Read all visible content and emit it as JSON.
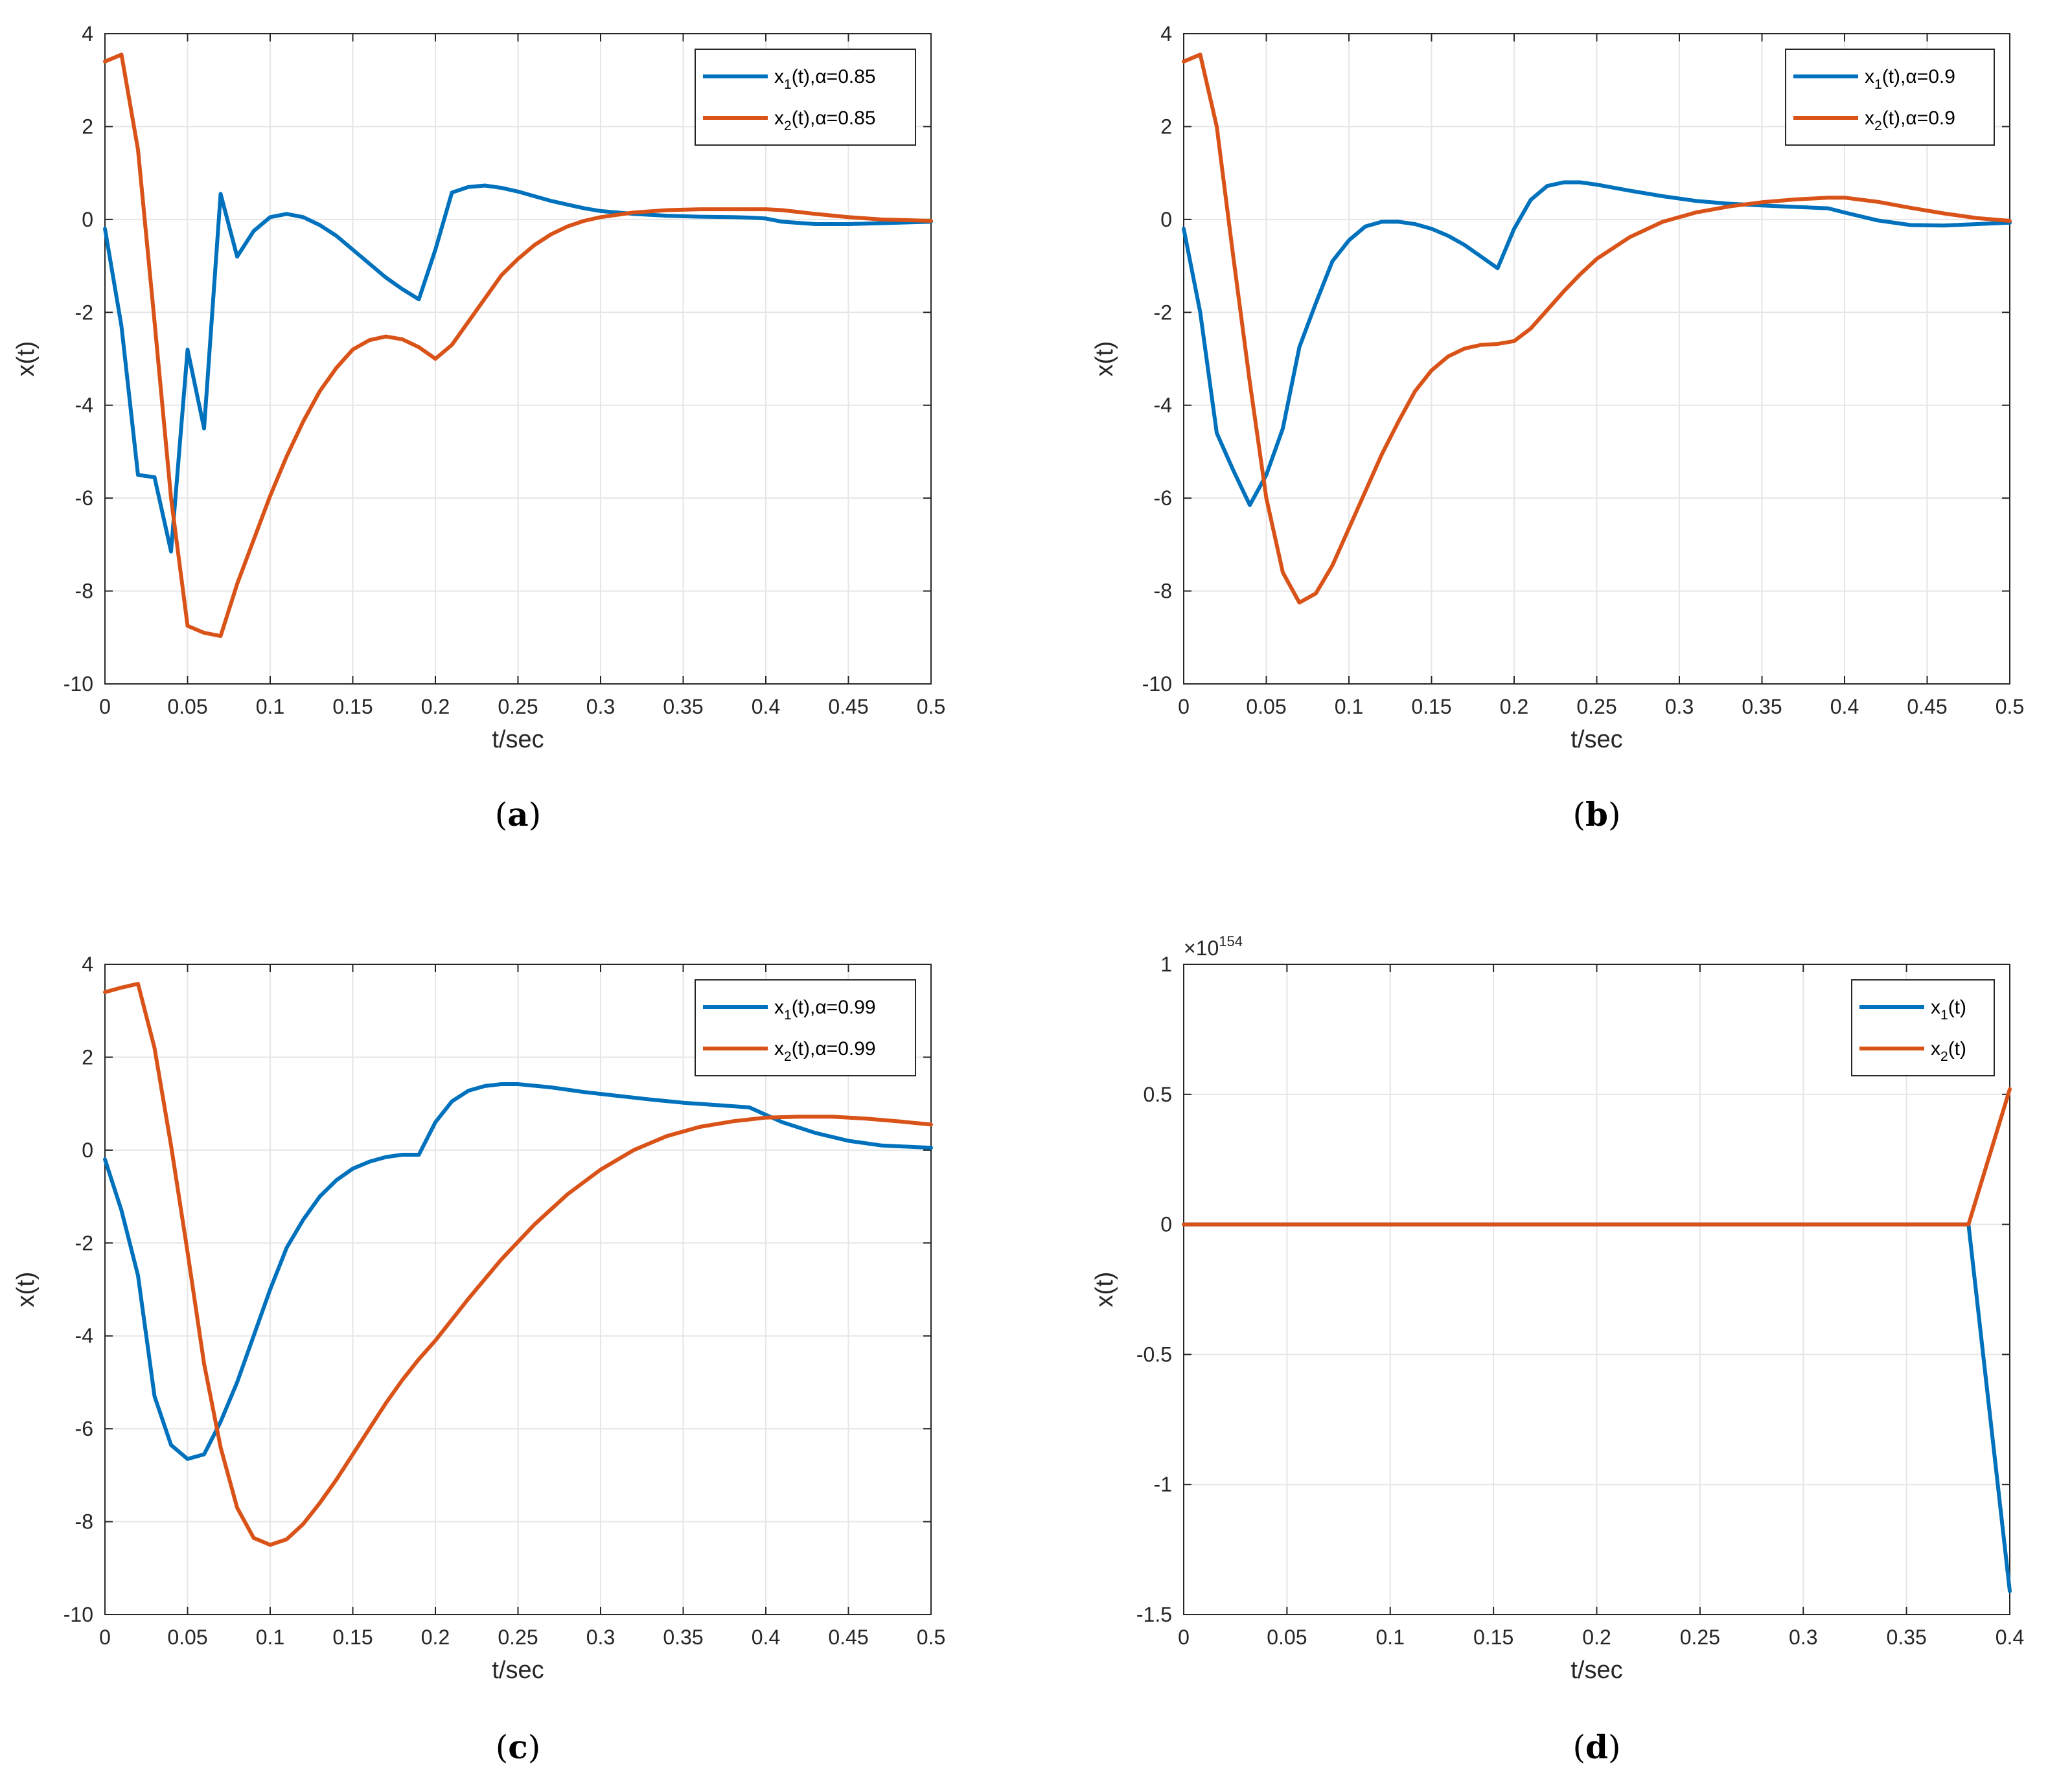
{
  "colors": {
    "series1": "#0072BD",
    "series2": "#D95319",
    "grid": "#e6e6e6",
    "axis": "#262626",
    "background": "#ffffff"
  },
  "chart_data": [
    {
      "type": "line",
      "panel": "a",
      "caption": "a",
      "xlabel": "t/sec",
      "ylabel": "x(t)",
      "xlim": [
        0,
        0.5
      ],
      "ylim": [
        -10,
        4
      ],
      "xticks": [
        "0",
        "0.05",
        "0.1",
        "0.15",
        "0.2",
        "0.25",
        "0.3",
        "0.35",
        "0.4",
        "0.45",
        "0.5"
      ],
      "yticks": [
        "-10",
        "-8",
        "-6",
        "-4",
        "-2",
        "0",
        "2",
        "4"
      ],
      "grid": true,
      "legend_position": "top-right",
      "series": [
        {
          "name": "x_1(t),α=0.85",
          "label_main": "x",
          "label_sub": "1",
          "label_rest": "(t),α=0.85",
          "color_key": "series1",
          "x": [
            0,
            0.01,
            0.02,
            0.03,
            0.04,
            0.05,
            0.06,
            0.07,
            0.08,
            0.09,
            0.1,
            0.11,
            0.12,
            0.13,
            0.14,
            0.15,
            0.16,
            0.17,
            0.18,
            0.19,
            0.2,
            0.21,
            0.22,
            0.23,
            0.24,
            0.25,
            0.26,
            0.27,
            0.28,
            0.29,
            0.3,
            0.32,
            0.34,
            0.36,
            0.38,
            0.39,
            0.4,
            0.41,
            0.43,
            0.45,
            0.47,
            0.5
          ],
          "y": [
            -0.2,
            -2.3,
            -5.5,
            -5.55,
            -7.15,
            -2.8,
            -4.5,
            0.55,
            -0.8,
            -0.25,
            0.05,
            0.12,
            0.05,
            -0.12,
            -0.35,
            -0.65,
            -0.95,
            -1.25,
            -1.5,
            -1.72,
            -0.65,
            0.58,
            0.7,
            0.73,
            0.68,
            0.6,
            0.5,
            0.4,
            0.32,
            0.24,
            0.18,
            0.12,
            0.08,
            0.06,
            0.05,
            0.04,
            0.02,
            -0.05,
            -0.1,
            -0.1,
            -0.08,
            -0.05
          ]
        },
        {
          "name": "x_2(t),α=0.85",
          "label_main": "x",
          "label_sub": "2",
          "label_rest": "(t),α=0.85",
          "color_key": "series2",
          "x": [
            0,
            0.01,
            0.02,
            0.03,
            0.04,
            0.05,
            0.06,
            0.07,
            0.08,
            0.09,
            0.1,
            0.11,
            0.12,
            0.13,
            0.14,
            0.15,
            0.16,
            0.17,
            0.18,
            0.19,
            0.2,
            0.21,
            0.22,
            0.23,
            0.24,
            0.25,
            0.26,
            0.27,
            0.28,
            0.29,
            0.3,
            0.32,
            0.34,
            0.36,
            0.38,
            0.4,
            0.41,
            0.43,
            0.45,
            0.47,
            0.5
          ],
          "y": [
            3.4,
            3.55,
            1.5,
            -2.2,
            -6.0,
            -8.75,
            -8.9,
            -8.97,
            -7.85,
            -6.9,
            -5.95,
            -5.1,
            -4.35,
            -3.7,
            -3.2,
            -2.8,
            -2.6,
            -2.52,
            -2.58,
            -2.75,
            -3.0,
            -2.7,
            -2.2,
            -1.7,
            -1.2,
            -0.85,
            -0.55,
            -0.32,
            -0.15,
            -0.03,
            0.05,
            0.15,
            0.2,
            0.22,
            0.22,
            0.22,
            0.2,
            0.12,
            0.05,
            0.0,
            -0.03
          ]
        }
      ]
    },
    {
      "type": "line",
      "panel": "b",
      "caption": "b",
      "xlabel": "t/sec",
      "ylabel": "x(t)",
      "xlim": [
        0,
        0.5
      ],
      "ylim": [
        -10,
        4
      ],
      "xticks": [
        "0",
        "0.05",
        "0.1",
        "0.15",
        "0.2",
        "0.25",
        "0.3",
        "0.35",
        "0.4",
        "0.45",
        "0.5"
      ],
      "yticks": [
        "-10",
        "-8",
        "-6",
        "-4",
        "-2",
        "0",
        "2",
        "4"
      ],
      "grid": true,
      "legend_position": "top-right",
      "series": [
        {
          "name": "x_1(t),α=0.9",
          "label_main": "x",
          "label_sub": "1",
          "label_rest": "(t),α=0.9",
          "color_key": "series1",
          "x": [
            0,
            0.01,
            0.02,
            0.03,
            0.04,
            0.05,
            0.06,
            0.07,
            0.08,
            0.09,
            0.1,
            0.11,
            0.12,
            0.13,
            0.14,
            0.15,
            0.16,
            0.17,
            0.18,
            0.19,
            0.2,
            0.21,
            0.22,
            0.23,
            0.24,
            0.25,
            0.27,
            0.29,
            0.31,
            0.33,
            0.35,
            0.37,
            0.39,
            0.4,
            0.42,
            0.44,
            0.46,
            0.48,
            0.5
          ],
          "y": [
            -0.2,
            -2.0,
            -4.6,
            -5.4,
            -6.15,
            -5.5,
            -4.5,
            -2.75,
            -1.8,
            -0.9,
            -0.45,
            -0.15,
            -0.05,
            -0.05,
            -0.1,
            -0.2,
            -0.35,
            -0.55,
            -0.8,
            -1.05,
            -0.2,
            0.42,
            0.72,
            0.8,
            0.8,
            0.75,
            0.62,
            0.5,
            0.4,
            0.34,
            0.3,
            0.27,
            0.24,
            0.15,
            -0.02,
            -0.12,
            -0.13,
            -0.1,
            -0.07
          ]
        },
        {
          "name": "x_2(t),α=0.9",
          "label_main": "x",
          "label_sub": "2",
          "label_rest": "(t),α=0.9",
          "color_key": "series2",
          "x": [
            0,
            0.01,
            0.02,
            0.03,
            0.04,
            0.05,
            0.06,
            0.07,
            0.08,
            0.09,
            0.1,
            0.11,
            0.12,
            0.13,
            0.14,
            0.15,
            0.16,
            0.17,
            0.18,
            0.19,
            0.2,
            0.21,
            0.22,
            0.23,
            0.24,
            0.25,
            0.27,
            0.29,
            0.31,
            0.33,
            0.35,
            0.37,
            0.39,
            0.4,
            0.42,
            0.44,
            0.46,
            0.48,
            0.5
          ],
          "y": [
            3.4,
            3.55,
            2.0,
            -0.8,
            -3.5,
            -6.0,
            -7.6,
            -8.25,
            -8.05,
            -7.45,
            -6.65,
            -5.85,
            -5.05,
            -4.35,
            -3.7,
            -3.25,
            -2.95,
            -2.78,
            -2.7,
            -2.68,
            -2.62,
            -2.35,
            -1.95,
            -1.55,
            -1.18,
            -0.85,
            -0.38,
            -0.05,
            0.15,
            0.28,
            0.37,
            0.43,
            0.47,
            0.47,
            0.38,
            0.25,
            0.13,
            0.03,
            -0.03
          ]
        }
      ]
    },
    {
      "type": "line",
      "panel": "c",
      "caption": "c",
      "xlabel": "t/sec",
      "ylabel": "x(t)",
      "xlim": [
        0,
        0.5
      ],
      "ylim": [
        -10,
        4
      ],
      "xticks": [
        "0",
        "0.05",
        "0.1",
        "0.15",
        "0.2",
        "0.25",
        "0.3",
        "0.35",
        "0.4",
        "0.45",
        "0.5"
      ],
      "yticks": [
        "-10",
        "-8",
        "-6",
        "-4",
        "-2",
        "0",
        "2",
        "4"
      ],
      "grid": true,
      "legend_position": "top-right",
      "series": [
        {
          "name": "x_1(t),α=0.99",
          "label_main": "x",
          "label_sub": "1",
          "label_rest": "(t),α=0.99",
          "color_key": "series1",
          "x": [
            0,
            0.01,
            0.02,
            0.03,
            0.04,
            0.05,
            0.06,
            0.07,
            0.08,
            0.09,
            0.1,
            0.11,
            0.12,
            0.13,
            0.14,
            0.15,
            0.16,
            0.17,
            0.18,
            0.19,
            0.2,
            0.21,
            0.22,
            0.23,
            0.24,
            0.25,
            0.27,
            0.29,
            0.31,
            0.33,
            0.35,
            0.37,
            0.39,
            0.41,
            0.43,
            0.45,
            0.47,
            0.5
          ],
          "y": [
            -0.2,
            -1.3,
            -2.7,
            -5.3,
            -6.35,
            -6.65,
            -6.55,
            -5.85,
            -5.0,
            -4.0,
            -3.0,
            -2.1,
            -1.5,
            -1.0,
            -0.65,
            -0.4,
            -0.25,
            -0.15,
            -0.1,
            -0.1,
            0.6,
            1.05,
            1.28,
            1.38,
            1.42,
            1.42,
            1.35,
            1.25,
            1.17,
            1.09,
            1.02,
            0.97,
            0.92,
            0.6,
            0.37,
            0.2,
            0.1,
            0.05
          ]
        },
        {
          "name": "x_2(t),α=0.99",
          "label_main": "x",
          "label_sub": "2",
          "label_rest": "(t),α=0.99",
          "color_key": "series2",
          "x": [
            0,
            0.01,
            0.02,
            0.03,
            0.04,
            0.05,
            0.06,
            0.07,
            0.08,
            0.09,
            0.1,
            0.11,
            0.12,
            0.13,
            0.14,
            0.15,
            0.16,
            0.17,
            0.18,
            0.19,
            0.2,
            0.22,
            0.24,
            0.26,
            0.28,
            0.3,
            0.32,
            0.34,
            0.36,
            0.38,
            0.4,
            0.42,
            0.44,
            0.46,
            0.48,
            0.5
          ],
          "y": [
            3.4,
            3.5,
            3.58,
            2.2,
            0.1,
            -2.2,
            -4.6,
            -6.4,
            -7.7,
            -8.35,
            -8.5,
            -8.38,
            -8.05,
            -7.6,
            -7.1,
            -6.55,
            -6.0,
            -5.45,
            -4.95,
            -4.5,
            -4.1,
            -3.2,
            -2.35,
            -1.6,
            -0.95,
            -0.42,
            0.0,
            0.3,
            0.5,
            0.62,
            0.7,
            0.72,
            0.72,
            0.68,
            0.62,
            0.55
          ]
        }
      ]
    },
    {
      "type": "line",
      "panel": "d",
      "caption": "d",
      "xlabel": "t/sec",
      "ylabel": "x(t)",
      "xlim": [
        0,
        0.4
      ],
      "ylim": [
        -1.5,
        1
      ],
      "y_scale_exponent": "154",
      "y_scale_base": "×10",
      "xticks": [
        "0",
        "0.05",
        "0.1",
        "0.15",
        "0.2",
        "0.25",
        "0.3",
        "0.35",
        "0.4"
      ],
      "yticks": [
        "-1.5",
        "-1",
        "-0.5",
        "0",
        "0.5",
        "1"
      ],
      "grid": true,
      "legend_position": "top-right",
      "series": [
        {
          "name": "x_1(t)",
          "label_main": "x",
          "label_sub": "1",
          "label_rest": "(t)",
          "color_key": "series1",
          "x": [
            0,
            0.05,
            0.1,
            0.15,
            0.2,
            0.25,
            0.3,
            0.35,
            0.38,
            0.4
          ],
          "y": [
            0,
            0,
            0,
            0,
            0,
            0,
            0,
            0,
            0,
            -1.41
          ]
        },
        {
          "name": "x_2(t)",
          "label_main": "x",
          "label_sub": "2",
          "label_rest": "(t)",
          "color_key": "series2",
          "x": [
            0,
            0.05,
            0.1,
            0.15,
            0.2,
            0.25,
            0.3,
            0.35,
            0.38,
            0.4
          ],
          "y": [
            0,
            0,
            0,
            0,
            0,
            0,
            0,
            0,
            0,
            0.52
          ]
        }
      ]
    }
  ]
}
